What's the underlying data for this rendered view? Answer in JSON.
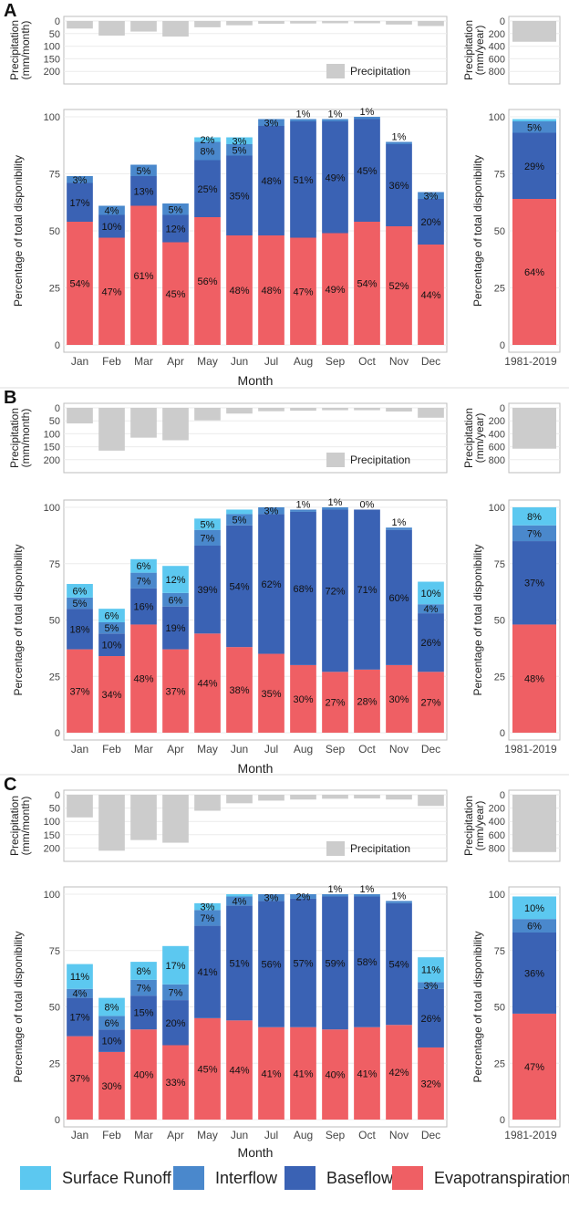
{
  "colors": {
    "surface_runoff": "#5cc8f0",
    "interflow": "#4a88cc",
    "baseflow": "#3a62b4",
    "evapotranspiration": "#ef5f64",
    "precipitation": "#cccccc"
  },
  "legend": {
    "surface_runoff": "Surface Runoff",
    "interflow": "Interflow",
    "baseflow": "Baseflow",
    "evapotranspiration": "Evapotranspiration"
  },
  "chart_data": [
    {
      "panel": "A",
      "type": "bar",
      "stacked": true,
      "xlabel": "Month",
      "ylabel": "Percentage of total disponibility",
      "ylim": [
        0,
        100
      ],
      "yticks": [
        "0",
        "25",
        "50",
        "75",
        "100"
      ],
      "categories": [
        "Jan",
        "Feb",
        "Mar",
        "Apr",
        "May",
        "Jun",
        "Jul",
        "Aug",
        "Sep",
        "Oct",
        "Nov",
        "Dec"
      ],
      "series": [
        {
          "name": "Evapotranspiration",
          "key": "evapotranspiration",
          "values": [
            54,
            47,
            61,
            45,
            56,
            48,
            48,
            47,
            49,
            54,
            52,
            44
          ]
        },
        {
          "name": "Baseflow",
          "key": "baseflow",
          "values": [
            17,
            10,
            13,
            12,
            25,
            35,
            48,
            51,
            49,
            45,
            36,
            20
          ]
        },
        {
          "name": "Interflow",
          "key": "interflow",
          "values": [
            3,
            4,
            5,
            5,
            8,
            5,
            3,
            1,
            1,
            1,
            1,
            3
          ]
        },
        {
          "name": "Surface Runoff",
          "key": "surface_runoff",
          "values": [
            0,
            0,
            0,
            0,
            2,
            3,
            0,
            0,
            0,
            0,
            0,
            0
          ]
        }
      ],
      "labels": [
        [
          "54%",
          "17%",
          "3%",
          ""
        ],
        [
          "47%",
          "10%",
          "4%",
          ""
        ],
        [
          "61%",
          "13%",
          "5%",
          ""
        ],
        [
          "45%",
          "12%",
          "5%",
          ""
        ],
        [
          "56%",
          "25%",
          "8%",
          "2%"
        ],
        [
          "48%",
          "35%",
          "5%",
          "3%"
        ],
        [
          "48%",
          "48%",
          "3%",
          ""
        ],
        [
          "47%",
          "51%",
          "1%",
          ""
        ],
        [
          "49%",
          "49%",
          "1%",
          ""
        ],
        [
          "54%",
          "45%",
          "1%",
          ""
        ],
        [
          "52%",
          "36%",
          "1%",
          ""
        ],
        [
          "44%",
          "20%",
          "3%",
          ""
        ]
      ],
      "precip": {
        "ylabel": "Precipitation (mm/month)",
        "yticks": [
          "0",
          "50",
          "100",
          "150",
          "200"
        ],
        "ymax": 250,
        "values": [
          30,
          58,
          42,
          62,
          25,
          17,
          11,
          10,
          9,
          9,
          14,
          20
        ],
        "legend": "Precipitation"
      },
      "annual": {
        "category": "1981-2019",
        "values": {
          "evapotranspiration": 64,
          "baseflow": 29,
          "interflow": 5,
          "surface_runoff": 1
        },
        "labels": {
          "evapotranspiration": "64%",
          "baseflow": "29%",
          "interflow": "5%",
          "surface_runoff": ""
        },
        "ylabel": "Percentage of total disponibility",
        "yticks": [
          "0",
          "25",
          "50",
          "75",
          "100"
        ],
        "precip_ylabel": "Precipitation (mm/year)",
        "precip_yticks": [
          "0",
          "200",
          "400",
          "600",
          "800"
        ],
        "precip_ymax": 1000,
        "precip_value": 330
      }
    },
    {
      "panel": "B",
      "type": "bar",
      "stacked": true,
      "xlabel": "Month",
      "ylabel": "Percentage of total disponibility",
      "ylim": [
        0,
        100
      ],
      "yticks": [
        "0",
        "25",
        "50",
        "75",
        "100"
      ],
      "categories": [
        "Jan",
        "Feb",
        "Mar",
        "Apr",
        "May",
        "Jun",
        "Jul",
        "Aug",
        "Sep",
        "Oct",
        "Nov",
        "Dec"
      ],
      "series": [
        {
          "name": "Evapotranspiration",
          "key": "evapotranspiration",
          "values": [
            37,
            34,
            48,
            37,
            44,
            38,
            35,
            30,
            27,
            28,
            30,
            27
          ]
        },
        {
          "name": "Baseflow",
          "key": "baseflow",
          "values": [
            18,
            10,
            16,
            19,
            39,
            54,
            62,
            68,
            72,
            71,
            60,
            26
          ]
        },
        {
          "name": "Interflow",
          "key": "interflow",
          "values": [
            5,
            5,
            7,
            6,
            7,
            5,
            3,
            1,
            1,
            0,
            1,
            4
          ]
        },
        {
          "name": "Surface Runoff",
          "key": "surface_runoff",
          "values": [
            6,
            6,
            6,
            12,
            5,
            2,
            0,
            0,
            0,
            0,
            0,
            10
          ]
        }
      ],
      "labels": [
        [
          "37%",
          "18%",
          "5%",
          "6%"
        ],
        [
          "34%",
          "10%",
          "5%",
          "6%"
        ],
        [
          "48%",
          "16%",
          "7%",
          "6%"
        ],
        [
          "37%",
          "19%",
          "6%",
          "12%"
        ],
        [
          "44%",
          "39%",
          "7%",
          "5%"
        ],
        [
          "38%",
          "54%",
          "5%",
          ""
        ],
        [
          "35%",
          "62%",
          "3%",
          ""
        ],
        [
          "30%",
          "68%",
          "1%",
          ""
        ],
        [
          "27%",
          "72%",
          "1%",
          ""
        ],
        [
          "28%",
          "71%",
          "0%",
          ""
        ],
        [
          "30%",
          "60%",
          "1%",
          ""
        ],
        [
          "27%",
          "26%",
          "4%",
          "10%"
        ]
      ],
      "precip": {
        "ylabel": "Precipitation (mm/month)",
        "yticks": [
          "0",
          "50",
          "100",
          "150",
          "200"
        ],
        "ymax": 250,
        "values": [
          60,
          165,
          115,
          125,
          48,
          22,
          13,
          11,
          9,
          9,
          14,
          38
        ],
        "legend": "Precipitation"
      },
      "annual": {
        "category": "1981-2019",
        "values": {
          "evapotranspiration": 48,
          "baseflow": 37,
          "interflow": 7,
          "surface_runoff": 8
        },
        "labels": {
          "evapotranspiration": "48%",
          "baseflow": "37%",
          "interflow": "7%",
          "surface_runoff": "8%"
        },
        "ylabel": "Percentage of total disponibility",
        "yticks": [
          "0",
          "25",
          "50",
          "75",
          "100"
        ],
        "precip_ylabel": "Precipitation (mm/year)",
        "precip_yticks": [
          "0",
          "200",
          "400",
          "600",
          "800"
        ],
        "precip_ymax": 1000,
        "precip_value": 630
      }
    },
    {
      "panel": "C",
      "type": "bar",
      "stacked": true,
      "xlabel": "Month",
      "ylabel": "Percentage of total disponibility",
      "ylim": [
        0,
        100
      ],
      "yticks": [
        "0",
        "25",
        "50",
        "75",
        "100"
      ],
      "categories": [
        "Jan",
        "Feb",
        "Mar",
        "Apr",
        "May",
        "Jun",
        "Jul",
        "Aug",
        "Sep",
        "Oct",
        "Nov",
        "Dec"
      ],
      "series": [
        {
          "name": "Evapotranspiration",
          "key": "evapotranspiration",
          "values": [
            37,
            30,
            40,
            33,
            45,
            44,
            41,
            41,
            40,
            41,
            42,
            32
          ]
        },
        {
          "name": "Baseflow",
          "key": "baseflow",
          "values": [
            17,
            10,
            15,
            20,
            41,
            51,
            56,
            57,
            59,
            58,
            54,
            26
          ]
        },
        {
          "name": "Interflow",
          "key": "interflow",
          "values": [
            4,
            6,
            7,
            7,
            7,
            4,
            3,
            2,
            1,
            1,
            1,
            3
          ]
        },
        {
          "name": "Surface Runoff",
          "key": "surface_runoff",
          "values": [
            11,
            8,
            8,
            17,
            3,
            1,
            0,
            0,
            0,
            0,
            0,
            11
          ]
        }
      ],
      "labels": [
        [
          "37%",
          "17%",
          "4%",
          "11%"
        ],
        [
          "30%",
          "10%",
          "6%",
          "8%"
        ],
        [
          "40%",
          "15%",
          "7%",
          "8%"
        ],
        [
          "33%",
          "20%",
          "7%",
          "17%"
        ],
        [
          "45%",
          "41%",
          "7%",
          "3%"
        ],
        [
          "44%",
          "51%",
          "4%",
          ""
        ],
        [
          "41%",
          "56%",
          "3%",
          ""
        ],
        [
          "41%",
          "57%",
          "2%",
          ""
        ],
        [
          "40%",
          "59%",
          "1%",
          ""
        ],
        [
          "41%",
          "58%",
          "1%",
          ""
        ],
        [
          "42%",
          "54%",
          "1%",
          ""
        ],
        [
          "32%",
          "26%",
          "3%",
          "11%"
        ]
      ],
      "precip": {
        "ylabel": "Precipitation (mm/month)",
        "yticks": [
          "0",
          "50",
          "100",
          "150",
          "200"
        ],
        "ymax": 250,
        "values": [
          85,
          210,
          170,
          180,
          60,
          32,
          22,
          18,
          15,
          14,
          18,
          42
        ],
        "legend": "Precipitation"
      },
      "annual": {
        "category": "1981-2019",
        "values": {
          "evapotranspiration": 47,
          "baseflow": 36,
          "interflow": 6,
          "surface_runoff": 10
        },
        "labels": {
          "evapotranspiration": "47%",
          "baseflow": "36%",
          "interflow": "6%",
          "surface_runoff": "10%"
        },
        "ylabel": "Percentage of total disponibility",
        "yticks": [
          "0",
          "25",
          "50",
          "75",
          "100"
        ],
        "precip_ylabel": "Precipitation (mm/year)",
        "precip_yticks": [
          "0",
          "200",
          "400",
          "600",
          "800"
        ],
        "precip_ymax": 1000,
        "precip_value": 860
      }
    }
  ]
}
